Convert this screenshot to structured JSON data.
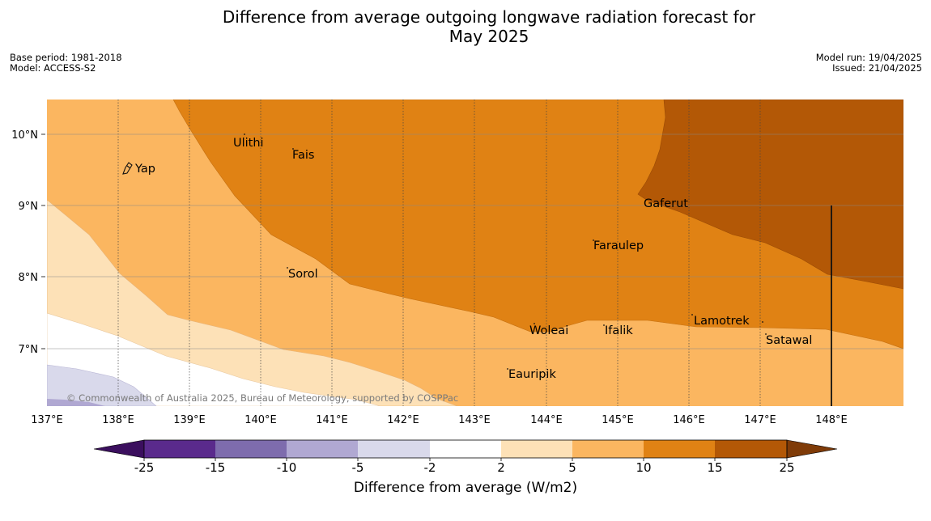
{
  "title_line1": "Difference from average outgoing longwave radiation forecast for",
  "title_line2": "May 2025",
  "base_period": "Base period: 1981-2018",
  "model": "Model: ACCESS-S2",
  "model_run": "Model run: 19/04/2025",
  "issued": "Issued: 21/04/2025",
  "attribution": "© Commonwealth of Australia 2025, Bureau of Meteorology, supported by COSPPac",
  "map": {
    "lon_range": [
      137,
      149
    ],
    "lat_range": [
      6.2,
      10.5
    ],
    "lon_labels": [
      "137°E",
      "138°E",
      "139°E",
      "140°E",
      "141°E",
      "142°E",
      "143°E",
      "144°E",
      "145°E",
      "146°E",
      "147°E",
      "148°E"
    ],
    "lat_labels": [
      "10°N",
      "9°N",
      "8°N",
      "7°N"
    ],
    "places": [
      "Ulithi",
      "Fais",
      "Yap",
      "Gaferut",
      "Faraulep",
      "Sorol",
      "Woleai",
      "Ifalik",
      "Lamotrek",
      "Satawal",
      "Eauripik"
    ]
  },
  "colorbar": {
    "label": "Difference from average (W/m2)",
    "ticks": [
      "-25",
      "-15",
      "-10",
      "-5",
      "-2",
      "2",
      "5",
      "10",
      "15",
      "25"
    ],
    "colors": [
      "#3b0f5e",
      "#5a2a8c",
      "#7e6cad",
      "#b0a8d2",
      "#d9d9eb",
      "#ffffff",
      "#fde1b7",
      "#fbb660",
      "#e08214",
      "#b35806",
      "#7f3b08"
    ]
  }
}
